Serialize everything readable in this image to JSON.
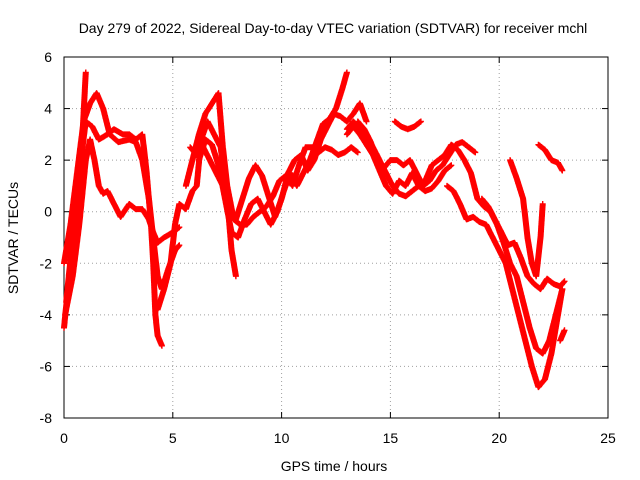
{
  "chart_data": {
    "type": "scatter",
    "title": "Day 279 of 2022, Sidereal Day-to-day VTEC variation (SDTVAR) for receiver mchl",
    "xlabel": "GPS time / hours",
    "ylabel": "SDTVAR / TECUs",
    "xlim": [
      0,
      25
    ],
    "ylim": [
      -8,
      6
    ],
    "x_ticks": [
      "0",
      "5",
      "10",
      "15",
      "20",
      "25"
    ],
    "y_ticks": [
      "-8",
      "-6",
      "-4",
      "-2",
      "0",
      "2",
      "4",
      "6"
    ],
    "grid": true,
    "marker": "plus",
    "series": [
      {
        "color": "#ff0000",
        "points": [
          [
            0.0,
            -4.5
          ],
          [
            0.3,
            -2.0
          ],
          [
            0.6,
            0.5
          ],
          [
            0.85,
            3.0
          ],
          [
            1.0,
            5.4
          ]
        ]
      },
      {
        "color": "#ff0000",
        "points": [
          [
            0.0,
            -2.0
          ],
          [
            0.3,
            -0.5
          ],
          [
            0.6,
            1.5
          ],
          [
            0.9,
            3.5
          ],
          [
            1.2,
            4.2
          ],
          [
            1.5,
            4.6
          ],
          [
            1.8,
            4.0
          ],
          [
            2.1,
            3.0
          ],
          [
            2.5,
            2.7
          ],
          [
            3.0,
            2.8
          ],
          [
            3.3,
            2.7
          ],
          [
            3.6,
            2.0
          ],
          [
            3.9,
            0.5
          ],
          [
            4.1,
            -1.0
          ],
          [
            4.3,
            -2.5
          ],
          [
            4.5,
            -3.0
          ],
          [
            4.8,
            -2.2
          ],
          [
            5.1,
            -1.5
          ],
          [
            5.3,
            -1.3
          ]
        ]
      },
      {
        "color": "#ff0000",
        "points": [
          [
            0.1,
            -3.5
          ],
          [
            0.4,
            -1.0
          ],
          [
            0.7,
            1.5
          ],
          [
            1.0,
            3.5
          ],
          [
            1.3,
            3.3
          ],
          [
            1.6,
            2.8
          ],
          [
            2.0,
            3.0
          ],
          [
            2.3,
            3.2
          ],
          [
            2.7,
            3.0
          ],
          [
            3.0,
            3.0
          ],
          [
            3.3,
            2.8
          ],
          [
            3.6,
            3.0
          ],
          [
            3.8,
            1.5
          ],
          [
            4.0,
            -0.5
          ],
          [
            4.1,
            -2.0
          ],
          [
            4.2,
            -4.0
          ],
          [
            4.3,
            -4.8
          ],
          [
            4.5,
            -5.2
          ]
        ]
      },
      {
        "color": "#ff0000",
        "points": [
          [
            0.05,
            -4.0
          ],
          [
            0.4,
            -2.5
          ],
          [
            0.7,
            -0.5
          ],
          [
            1.0,
            2.0
          ],
          [
            1.2,
            2.8
          ],
          [
            1.4,
            2.0
          ],
          [
            1.6,
            1.0
          ],
          [
            1.8,
            0.7
          ],
          [
            2.0,
            0.8
          ],
          [
            2.3,
            0.3
          ],
          [
            2.6,
            -0.2
          ],
          [
            3.0,
            0.3
          ],
          [
            3.3,
            0.1
          ],
          [
            3.6,
            0.1
          ],
          [
            3.9,
            -0.3
          ],
          [
            4.1,
            -0.8
          ],
          [
            4.3,
            -1.2
          ],
          [
            4.6,
            -1.0
          ],
          [
            5.0,
            -0.8
          ],
          [
            5.3,
            -0.6
          ]
        ]
      },
      {
        "color": "#ff0000",
        "points": [
          [
            4.3,
            -3.8
          ],
          [
            4.6,
            -3.0
          ],
          [
            4.9,
            -2.0
          ],
          [
            5.1,
            -0.5
          ],
          [
            5.3,
            0.3
          ],
          [
            5.6,
            0.1
          ],
          [
            5.9,
            0.8
          ],
          [
            6.1,
            1.0
          ],
          [
            6.3,
            2.8
          ],
          [
            6.6,
            3.5
          ],
          [
            6.9,
            3.0
          ],
          [
            7.2,
            2.5
          ],
          [
            7.5,
            0.5
          ],
          [
            7.7,
            -1.5
          ],
          [
            7.9,
            -2.5
          ]
        ]
      },
      {
        "color": "#ff0000",
        "points": [
          [
            5.6,
            1.0
          ],
          [
            5.9,
            2.0
          ],
          [
            6.2,
            3.0
          ],
          [
            6.5,
            3.8
          ],
          [
            6.8,
            4.2
          ],
          [
            7.1,
            4.6
          ],
          [
            7.3,
            2.5
          ],
          [
            7.5,
            1.0
          ],
          [
            7.8,
            -0.3
          ],
          [
            8.1,
            -0.5
          ],
          [
            8.4,
            -0.5
          ],
          [
            8.7,
            -0.2
          ],
          [
            9.0,
            0.0
          ],
          [
            9.3,
            0.2
          ],
          [
            9.6,
            0.6
          ],
          [
            9.9,
            1.2
          ],
          [
            10.2,
            1.4
          ],
          [
            10.5,
            1.0
          ],
          [
            10.8,
            1.8
          ],
          [
            11.1,
            2.5
          ],
          [
            11.4,
            2.5
          ],
          [
            11.7,
            2.3
          ],
          [
            12.0,
            2.5
          ],
          [
            12.3,
            2.4
          ],
          [
            12.6,
            2.2
          ],
          [
            12.9,
            2.3
          ],
          [
            13.2,
            2.5
          ],
          [
            13.5,
            2.3
          ]
        ]
      },
      {
        "color": "#ff0000",
        "points": [
          [
            5.8,
            2.5
          ],
          [
            6.1,
            2.2
          ],
          [
            6.4,
            2.5
          ],
          [
            6.7,
            2.0
          ],
          [
            7.0,
            1.5
          ],
          [
            7.3,
            1.0
          ],
          [
            7.6,
            0.2
          ],
          [
            7.9,
            -0.3
          ],
          [
            8.2,
            0.5
          ],
          [
            8.5,
            1.3
          ],
          [
            8.8,
            1.8
          ],
          [
            9.1,
            1.4
          ],
          [
            9.4,
            0.6
          ],
          [
            9.7,
            -0.2
          ],
          [
            10.0,
            0.5
          ],
          [
            10.3,
            1.5
          ],
          [
            10.6,
            2.0
          ],
          [
            10.9,
            2.2
          ],
          [
            11.2,
            1.6
          ],
          [
            11.5,
            2.0
          ],
          [
            11.8,
            2.8
          ],
          [
            12.1,
            3.3
          ],
          [
            12.4,
            3.8
          ],
          [
            12.7,
            3.7
          ],
          [
            13.0,
            3.5
          ],
          [
            13.3,
            3.8
          ],
          [
            13.6,
            4.2
          ],
          [
            13.9,
            3.5
          ]
        ]
      },
      {
        "color": "#ff0000",
        "points": [
          [
            6.2,
            2.0
          ],
          [
            6.5,
            2.8
          ],
          [
            6.8,
            2.6
          ],
          [
            7.1,
            1.8
          ],
          [
            7.4,
            0.5
          ],
          [
            7.7,
            -0.8
          ],
          [
            8.0,
            -1.0
          ],
          [
            8.3,
            -0.3
          ],
          [
            8.6,
            0.3
          ],
          [
            8.9,
            0.5
          ],
          [
            9.2,
            0.0
          ],
          [
            9.5,
            -0.5
          ],
          [
            9.8,
            0.0
          ],
          [
            10.1,
            0.8
          ],
          [
            10.4,
            1.5
          ],
          [
            10.7,
            1.0
          ],
          [
            11.0,
            1.5
          ],
          [
            11.3,
            2.0
          ],
          [
            11.6,
            2.7
          ],
          [
            11.9,
            3.4
          ],
          [
            12.2,
            3.6
          ],
          [
            12.5,
            4.0
          ],
          [
            12.8,
            4.8
          ],
          [
            13.0,
            5.4
          ]
        ]
      },
      {
        "color": "#ff0000",
        "points": [
          [
            13.0,
            3.2
          ],
          [
            13.3,
            3.5
          ],
          [
            13.6,
            3.2
          ],
          [
            13.9,
            2.8
          ],
          [
            14.2,
            2.5
          ],
          [
            14.5,
            2.0
          ],
          [
            14.8,
            1.5
          ],
          [
            15.1,
            1.0
          ],
          [
            15.4,
            0.7
          ],
          [
            15.7,
            0.6
          ],
          [
            16.0,
            0.8
          ],
          [
            16.3,
            1.0
          ],
          [
            16.6,
            0.8
          ],
          [
            16.9,
            0.9
          ],
          [
            17.2,
            1.2
          ],
          [
            17.5,
            1.6
          ],
          [
            17.8,
            1.8
          ]
        ]
      },
      {
        "color": "#ff0000",
        "points": [
          [
            13.0,
            3.0
          ],
          [
            13.3,
            3.3
          ],
          [
            13.6,
            3.0
          ],
          [
            13.9,
            2.6
          ],
          [
            14.2,
            2.2
          ],
          [
            14.5,
            1.6
          ],
          [
            14.8,
            1.0
          ],
          [
            15.1,
            0.7
          ],
          [
            15.4,
            1.2
          ],
          [
            15.7,
            1.0
          ],
          [
            16.0,
            1.5
          ],
          [
            16.3,
            1.0
          ],
          [
            16.6,
            1.2
          ],
          [
            16.9,
            1.8
          ],
          [
            17.2,
            2.0
          ],
          [
            17.5,
            2.2
          ],
          [
            17.8,
            2.6
          ],
          [
            18.1,
            2.4
          ],
          [
            18.4,
            2.0
          ],
          [
            18.7,
            1.5
          ],
          [
            19.0,
            0.5
          ],
          [
            19.3,
            0.2
          ],
          [
            19.6,
            0.0
          ],
          [
            19.9,
            -0.5
          ],
          [
            20.2,
            -1.2
          ],
          [
            20.5,
            -2.0
          ],
          [
            20.8,
            -2.5
          ],
          [
            21.1,
            -3.5
          ],
          [
            21.4,
            -4.5
          ],
          [
            21.7,
            -5.3
          ],
          [
            22.0,
            -5.5
          ],
          [
            22.3,
            -5.0
          ],
          [
            22.6,
            -4.0
          ],
          [
            22.9,
            -3.0
          ]
        ]
      },
      {
        "color": "#ff0000",
        "points": [
          [
            13.5,
            3.5
          ],
          [
            13.8,
            3.2
          ],
          [
            14.1,
            2.7
          ],
          [
            14.4,
            2.0
          ],
          [
            14.7,
            1.7
          ],
          [
            15.0,
            2.0
          ],
          [
            15.3,
            2.0
          ],
          [
            15.6,
            1.8
          ],
          [
            15.9,
            2.0
          ],
          [
            16.2,
            1.5
          ],
          [
            16.5,
            1.0
          ],
          [
            16.8,
            1.2
          ],
          [
            17.1,
            1.6
          ],
          [
            17.4,
            1.8
          ],
          [
            17.7,
            2.2
          ],
          [
            18.0,
            2.6
          ],
          [
            18.3,
            2.7
          ],
          [
            18.6,
            2.5
          ],
          [
            18.9,
            2.3
          ]
        ]
      },
      {
        "color": "#ff0000",
        "points": [
          [
            15.2,
            3.5
          ],
          [
            15.5,
            3.3
          ],
          [
            15.8,
            3.2
          ],
          [
            16.1,
            3.3
          ],
          [
            16.4,
            3.5
          ]
        ]
      },
      {
        "color": "#ff0000",
        "points": [
          [
            17.6,
            1.0
          ],
          [
            17.9,
            0.8
          ],
          [
            18.2,
            0.3
          ],
          [
            18.5,
            -0.3
          ],
          [
            18.8,
            -0.2
          ],
          [
            19.1,
            -0.4
          ],
          [
            19.4,
            -0.5
          ],
          [
            19.7,
            -1.0
          ],
          [
            20.0,
            -1.5
          ],
          [
            20.3,
            -2.0
          ],
          [
            20.6,
            -3.0
          ],
          [
            20.9,
            -4.0
          ],
          [
            21.2,
            -5.0
          ],
          [
            21.5,
            -6.0
          ],
          [
            21.8,
            -6.8
          ],
          [
            22.1,
            -6.5
          ],
          [
            22.4,
            -5.5
          ],
          [
            22.7,
            -4.0
          ],
          [
            22.9,
            -3.0
          ]
        ]
      },
      {
        "color": "#ff0000",
        "points": [
          [
            19.2,
            0.5
          ],
          [
            19.5,
            0.2
          ],
          [
            19.8,
            -0.3
          ],
          [
            20.1,
            -0.8
          ],
          [
            20.4,
            -1.3
          ],
          [
            20.7,
            -1.2
          ],
          [
            21.0,
            -1.8
          ],
          [
            21.3,
            -2.5
          ],
          [
            21.6,
            -2.8
          ],
          [
            21.9,
            -3.0
          ],
          [
            22.2,
            -2.6
          ],
          [
            22.5,
            -2.8
          ],
          [
            22.8,
            -2.9
          ],
          [
            23.0,
            -2.7
          ]
        ]
      },
      {
        "color": "#ff0000",
        "points": [
          [
            20.5,
            2.0
          ],
          [
            20.8,
            1.3
          ],
          [
            21.1,
            0.5
          ],
          [
            21.3,
            -1.0
          ],
          [
            21.5,
            -2.0
          ],
          [
            21.7,
            -2.5
          ],
          [
            21.9,
            -1.0
          ],
          [
            22.0,
            0.3
          ]
        ]
      },
      {
        "color": "#ff0000",
        "points": [
          [
            21.8,
            2.6
          ],
          [
            22.1,
            2.4
          ],
          [
            22.4,
            2.0
          ],
          [
            22.7,
            1.9
          ],
          [
            22.9,
            1.6
          ]
        ]
      },
      {
        "color": "#ff0000",
        "points": [
          [
            22.8,
            -5.0
          ],
          [
            22.9,
            -4.8
          ],
          [
            23.0,
            -4.6
          ]
        ]
      }
    ]
  }
}
